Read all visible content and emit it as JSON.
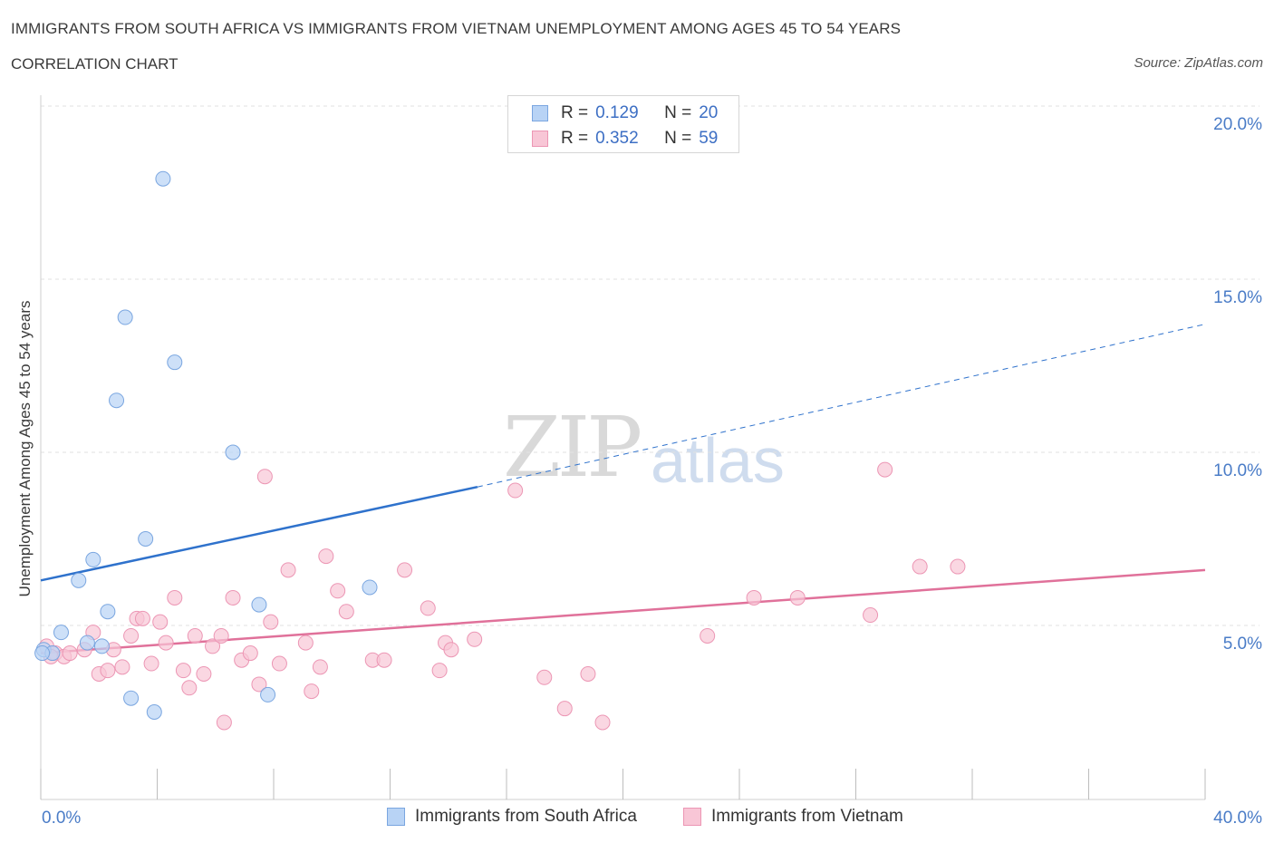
{
  "header": {
    "title": "IMMIGRANTS FROM SOUTH AFRICA VS IMMIGRANTS FROM VIETNAM UNEMPLOYMENT AMONG AGES 45 TO 54 YEARS",
    "subtitle": "CORRELATION CHART",
    "source": "Source: ZipAtlas.com"
  },
  "watermark": {
    "zip": "ZIP",
    "atlas": "atlas"
  },
  "legend": {
    "rows": [
      {
        "r_label": "R =",
        "r_value": "0.129",
        "n_label": "N =",
        "n_value": "20"
      },
      {
        "r_label": "R =",
        "r_value": "0.352",
        "n_label": "N =",
        "n_value": "59"
      }
    ]
  },
  "bottom_legend": {
    "south_africa": "Immigrants from South Africa",
    "vietnam": "Immigrants from Vietnam"
  },
  "colors": {
    "south_africa_fill": "#b8d3f5",
    "south_africa_stroke": "#7aa6e0",
    "south_africa_line": "#2f72cc",
    "vietnam_fill": "#f8c6d6",
    "vietnam_stroke": "#ec96b4",
    "vietnam_line": "#e0719a",
    "tick_text": "#4a7cc7",
    "grid": "#e2e2e2"
  },
  "chart_data": {
    "type": "scatter",
    "title": "IMMIGRANTS FROM SOUTH AFRICA VS IMMIGRANTS FROM VIETNAM UNEMPLOYMENT AMONG AGES 45 TO 54 YEARS",
    "xlabel": "",
    "ylabel": "Unemployment Among Ages 45 to 54 years",
    "xlim": [
      0,
      40
    ],
    "ylim": [
      0,
      20
    ],
    "x_tick_labels": [
      "0.0%",
      "40.0%"
    ],
    "y_ticks": [
      5,
      10,
      15,
      20
    ],
    "y_tick_labels": [
      "5.0%",
      "10.0%",
      "15.0%",
      "20.0%"
    ],
    "grid": true,
    "legend_position": "top-center",
    "series": [
      {
        "name": "Immigrants from South Africa",
        "points": [
          [
            0.1,
            4.3
          ],
          [
            0.4,
            4.2
          ],
          [
            0.7,
            4.8
          ],
          [
            1.3,
            6.3
          ],
          [
            1.6,
            4.5
          ],
          [
            1.8,
            6.9
          ],
          [
            2.1,
            4.4
          ],
          [
            2.3,
            5.4
          ],
          [
            2.6,
            11.5
          ],
          [
            2.9,
            13.9
          ],
          [
            3.1,
            2.9
          ],
          [
            3.6,
            7.5
          ],
          [
            3.9,
            2.5
          ],
          [
            4.2,
            17.9
          ],
          [
            4.6,
            12.6
          ],
          [
            6.6,
            10.0
          ],
          [
            7.5,
            5.6
          ],
          [
            7.8,
            3.0
          ],
          [
            11.3,
            6.1
          ],
          [
            0.05,
            4.2
          ]
        ],
        "trend": {
          "x0": 0,
          "y0": 6.3,
          "x1": 15,
          "y1": 9.0,
          "x_dashed_end": 40,
          "y_dashed_end": 13.7
        }
      },
      {
        "name": "Immigrants from Vietnam",
        "points": [
          [
            0.2,
            4.4
          ],
          [
            0.5,
            4.2
          ],
          [
            0.8,
            4.1
          ],
          [
            1.0,
            4.2
          ],
          [
            1.5,
            4.3
          ],
          [
            1.8,
            4.8
          ],
          [
            2.0,
            3.6
          ],
          [
            2.3,
            3.7
          ],
          [
            2.5,
            4.3
          ],
          [
            2.8,
            3.8
          ],
          [
            3.1,
            4.7
          ],
          [
            3.3,
            5.2
          ],
          [
            3.5,
            5.2
          ],
          [
            3.8,
            3.9
          ],
          [
            4.1,
            5.1
          ],
          [
            4.3,
            4.5
          ],
          [
            4.6,
            5.8
          ],
          [
            4.9,
            3.7
          ],
          [
            5.1,
            3.2
          ],
          [
            5.3,
            4.7
          ],
          [
            5.6,
            3.6
          ],
          [
            5.9,
            4.4
          ],
          [
            6.2,
            4.7
          ],
          [
            6.3,
            2.2
          ],
          [
            6.6,
            5.8
          ],
          [
            6.9,
            4.0
          ],
          [
            7.2,
            4.2
          ],
          [
            7.5,
            3.3
          ],
          [
            7.7,
            9.3
          ],
          [
            7.9,
            5.1
          ],
          [
            8.2,
            3.9
          ],
          [
            8.5,
            6.6
          ],
          [
            9.1,
            4.5
          ],
          [
            9.3,
            3.1
          ],
          [
            9.6,
            3.8
          ],
          [
            9.8,
            7.0
          ],
          [
            10.2,
            6.0
          ],
          [
            10.5,
            5.4
          ],
          [
            11.4,
            4.0
          ],
          [
            11.8,
            4.0
          ],
          [
            12.5,
            6.6
          ],
          [
            13.3,
            5.5
          ],
          [
            13.7,
            3.7
          ],
          [
            13.9,
            4.5
          ],
          [
            14.1,
            4.3
          ],
          [
            14.9,
            4.6
          ],
          [
            16.3,
            8.9
          ],
          [
            17.3,
            3.5
          ],
          [
            18.0,
            2.6
          ],
          [
            18.8,
            3.6
          ],
          [
            19.3,
            2.2
          ],
          [
            22.9,
            4.7
          ],
          [
            24.5,
            5.8
          ],
          [
            26.0,
            5.8
          ],
          [
            28.5,
            5.3
          ],
          [
            29.0,
            9.5
          ],
          [
            30.2,
            6.7
          ],
          [
            31.5,
            6.7
          ],
          [
            0.35,
            4.1
          ]
        ],
        "trend": {
          "x0": 0,
          "y0": 4.2,
          "x1": 40,
          "y1": 6.6
        }
      }
    ]
  }
}
